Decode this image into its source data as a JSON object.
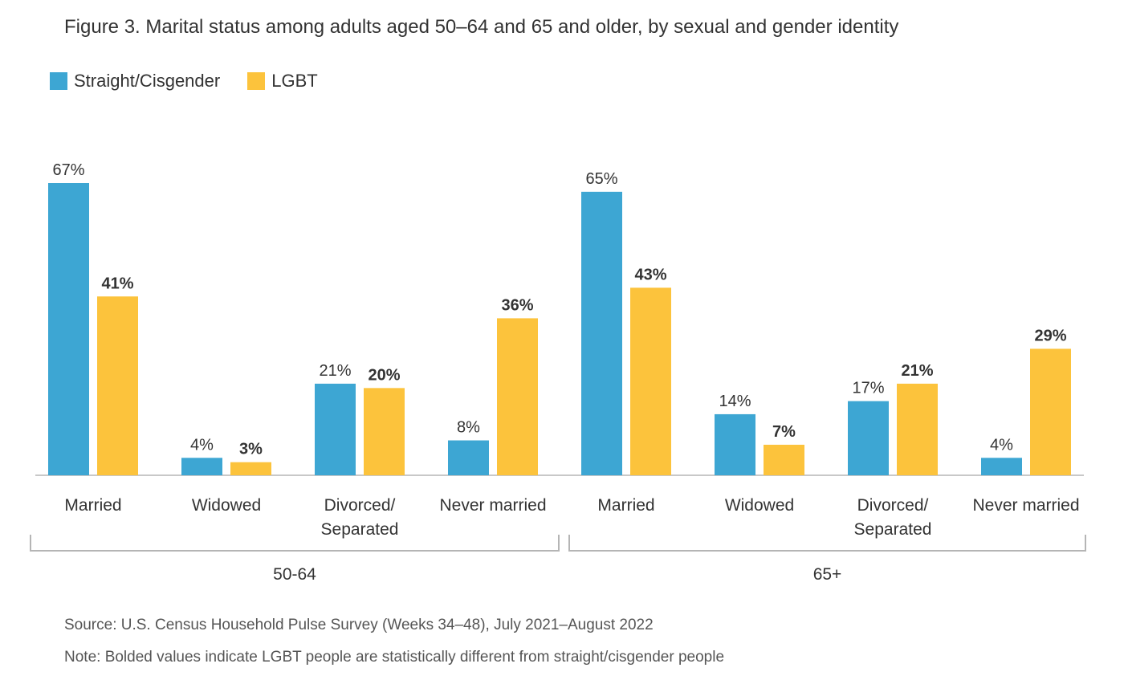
{
  "title": "Figure 3. Marital status among adults aged 50–64 and 65 and older, by sexual and gender identity",
  "colors": {
    "straight": "#3da6d3",
    "lgbt": "#fcc33c"
  },
  "chart_data": {
    "type": "bar",
    "title": "Figure 3. Marital status among adults aged 50–64 and 65 and older, by sexual and gender identity",
    "legend_position": "top-left",
    "grid": false,
    "ylim": [
      0,
      70
    ],
    "groups": [
      {
        "label": "50-64",
        "categories": [
          "Married",
          "Widowed",
          "Divorced/\nSeparated",
          "Never married"
        ]
      },
      {
        "label": "65+",
        "categories": [
          "Married",
          "Widowed",
          "Divorced/\nSeparated",
          "Never married"
        ]
      }
    ],
    "series": [
      {
        "name": "Straight/Cisgender",
        "values": [
          67,
          4,
          21,
          8,
          65,
          14,
          17,
          4
        ],
        "labels": [
          "67%",
          "4%",
          "21%",
          "8%",
          "65%",
          "14%",
          "17%",
          "4%"
        ],
        "bold": [
          false,
          false,
          false,
          false,
          false,
          false,
          false,
          false
        ]
      },
      {
        "name": "LGBT",
        "values": [
          41,
          3,
          20,
          36,
          43,
          7,
          21,
          29
        ],
        "labels": [
          "41%",
          "3%",
          "20%",
          "36%",
          "43%",
          "7%",
          "21%",
          "29%"
        ],
        "bold": [
          true,
          true,
          true,
          true,
          true,
          true,
          true,
          true
        ]
      }
    ]
  },
  "source": "Source: U.S. Census Household Pulse Survey (Weeks 34–48), July 2021–August 2022",
  "note": "Note: Bolded values indicate LGBT people are statistically different from straight/cisgender people"
}
